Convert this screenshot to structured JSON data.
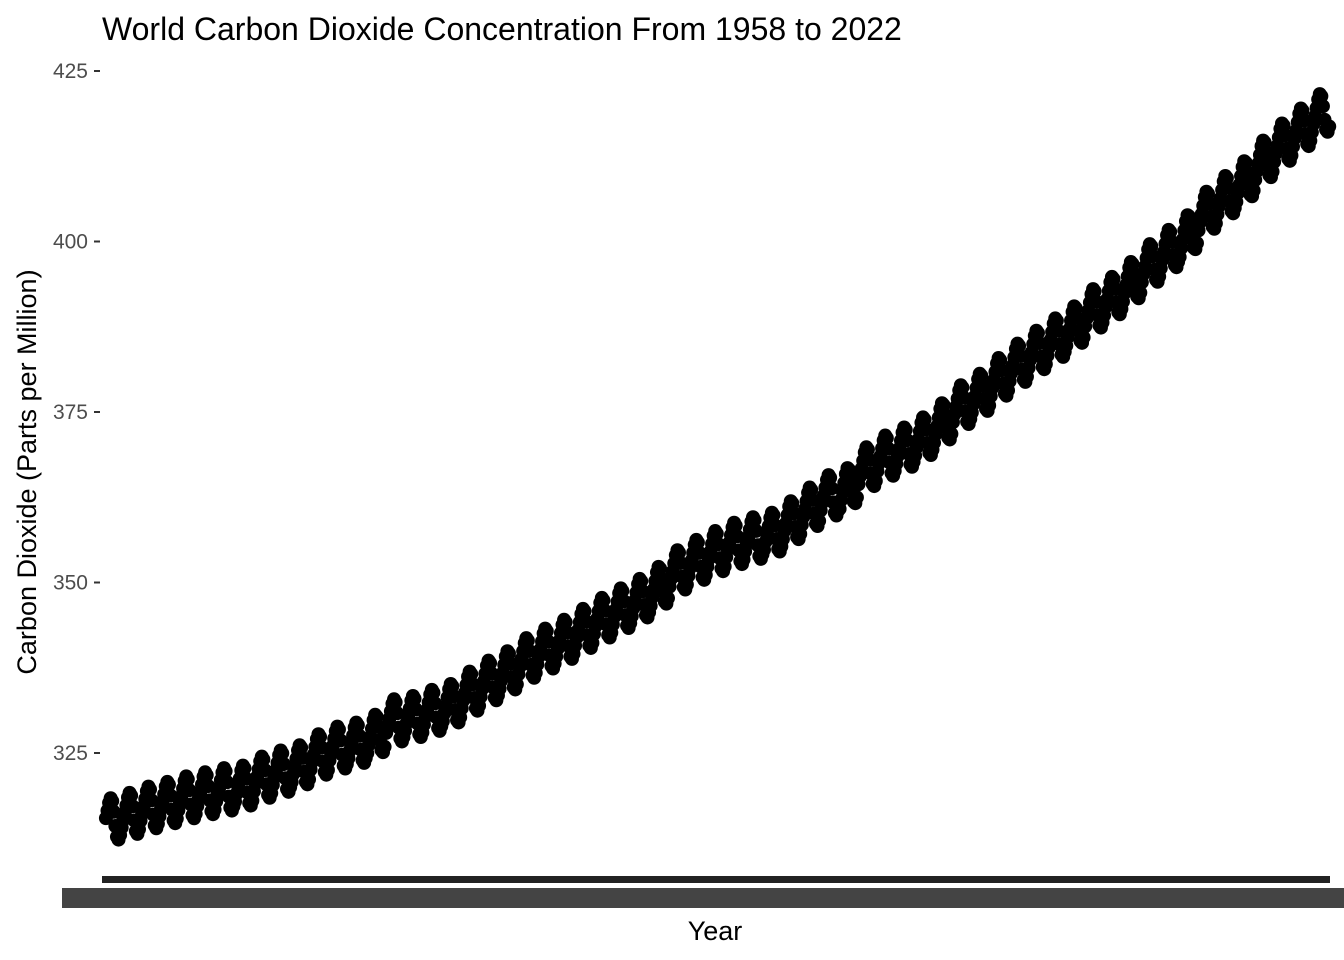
{
  "chart_data": {
    "type": "scatter",
    "title": "World Carbon Dioxide Concentration From 1958 to 2022",
    "xlabel": "Year",
    "ylabel": "Carbon Dioxide (Parts per Million)",
    "ylim": [
      305.6,
      425
    ],
    "y_ticks": [
      325,
      350,
      375,
      400,
      425
    ],
    "xlim": [
      1958,
      2023
    ],
    "grid": false,
    "legend": "none",
    "x_tick_labels": "overlapping (one per year, unreadable)",
    "point_color": "#000000",
    "annual_cycle": {
      "description": "monthly readings with ~3 ppm seasonal amplitude around the trend",
      "peak_month": "May",
      "trough_month": "October"
    },
    "series": [
      {
        "x": [
          1958,
          1959,
          1960,
          1961,
          1962,
          1963,
          1964,
          1965,
          1966,
          1967,
          1968,
          1969,
          1970,
          1971,
          1972,
          1973,
          1974,
          1975,
          1976,
          1977,
          1978,
          1979,
          1980,
          1981,
          1982,
          1983,
          1984,
          1985,
          1986,
          1987,
          1988,
          1989,
          1990,
          1991,
          1992,
          1993,
          1994,
          1995,
          1996,
          1997,
          1998,
          1999,
          2000,
          2001,
          2002,
          2003,
          2004,
          2005,
          2006,
          2007,
          2008,
          2009,
          2010,
          2011,
          2012,
          2013,
          2014,
          2015,
          2016,
          2017,
          2018,
          2019,
          2020,
          2021,
          2022
        ],
        "y": [
          315.2,
          316.0,
          316.9,
          317.6,
          318.4,
          319.0,
          319.6,
          320.0,
          321.3,
          322.2,
          323.0,
          324.6,
          325.7,
          326.3,
          327.5,
          329.7,
          330.2,
          331.1,
          332.0,
          333.8,
          335.4,
          336.8,
          338.7,
          340.1,
          341.4,
          343.0,
          344.6,
          346.0,
          347.4,
          349.2,
          351.6,
          353.1,
          354.4,
          355.6,
          356.4,
          357.1,
          358.8,
          360.8,
          362.6,
          363.7,
          366.7,
          368.4,
          369.6,
          371.1,
          373.2,
          375.8,
          377.5,
          379.8,
          381.9,
          383.8,
          385.6,
          387.4,
          389.9,
          391.7,
          393.9,
          396.5,
          398.6,
          400.8,
          404.2,
          406.5,
          408.7,
          411.7,
          414.2,
          416.4,
          418.5
        ]
      }
    ]
  }
}
